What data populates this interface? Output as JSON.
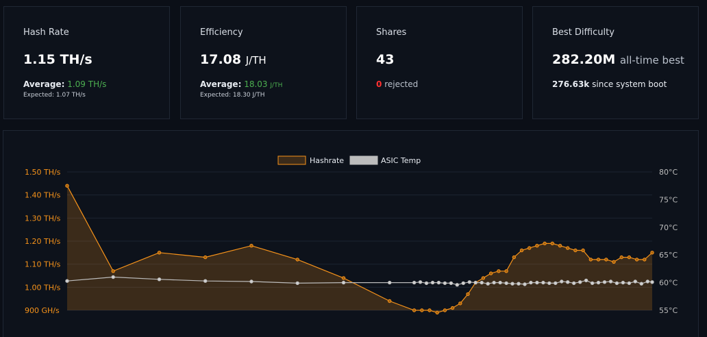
{
  "cards": {
    "hash_rate": {
      "title": "Hash Rate",
      "value": "1.15",
      "unit": "TH/s",
      "avg_label": "Average:",
      "avg_value": "1.09 TH/s",
      "expected": "Expected: 1.07 TH/s"
    },
    "efficiency": {
      "title": "Efficiency",
      "value": "17.08",
      "unit": "J/TH",
      "avg_label": "Average:",
      "avg_value": "18.03",
      "avg_unit": "J/TH",
      "expected": "Expected: 18.30 J/TH"
    },
    "shares": {
      "title": "Shares",
      "value": "43",
      "rejected_count": "0",
      "rejected_label": "rejected"
    },
    "best_difficulty": {
      "title": "Best Difficulty",
      "value": "282.20M",
      "suffix": "all-time best",
      "since_value": "276.63k",
      "since_label": "since system boot"
    }
  },
  "chart_data": {
    "type": "line",
    "title": "",
    "legend_position": "top-center",
    "grid": true,
    "series": [
      {
        "name": "Hashrate",
        "axis": "left",
        "unit": "TH/s",
        "color": "#f7931a",
        "fill": true,
        "x": [
          0,
          1.5,
          3,
          4.5,
          6,
          7.5,
          9,
          10.5,
          11.3,
          11.55,
          11.8,
          12.05,
          12.3,
          12.55,
          12.8,
          13.05,
          13.3,
          13.55,
          13.8,
          14.05,
          14.3,
          14.55,
          14.8,
          15.05,
          15.3,
          15.55,
          15.8,
          16.05,
          16.3,
          16.55,
          16.8,
          17.05,
          17.3,
          17.55,
          17.8,
          18.05,
          18.3,
          18.55,
          18.8,
          19.05
        ],
        "values": [
          1.44,
          1.07,
          1.15,
          1.13,
          1.18,
          1.12,
          1.04,
          0.94,
          0.9,
          0.9,
          0.9,
          0.89,
          0.9,
          0.91,
          0.93,
          0.97,
          1.02,
          1.04,
          1.06,
          1.07,
          1.07,
          1.13,
          1.16,
          1.17,
          1.18,
          1.19,
          1.19,
          1.18,
          1.17,
          1.16,
          1.16,
          1.12,
          1.12,
          1.12,
          1.11,
          1.13,
          1.13,
          1.12,
          1.12,
          1.15
        ]
      },
      {
        "name": "ASIC Temp",
        "axis": "right",
        "unit": "°C",
        "color": "#bcbcbc",
        "fill": false,
        "x": [
          0,
          1.5,
          3,
          4.5,
          6,
          7.5,
          9,
          10.5,
          11.3,
          11.5,
          11.7,
          11.9,
          12.1,
          12.3,
          12.5,
          12.7,
          12.9,
          13.1,
          13.3,
          13.5,
          13.7,
          13.9,
          14.1,
          14.3,
          14.5,
          14.7,
          14.9,
          15.1,
          15.3,
          15.5,
          15.7,
          15.9,
          16.1,
          16.3,
          16.5,
          16.7,
          16.9,
          17.1,
          17.3,
          17.5,
          17.7,
          17.9,
          18.1,
          18.3,
          18.5,
          18.7,
          18.9,
          19.05
        ],
        "values": [
          60.3,
          61.0,
          60.6,
          60.3,
          60.2,
          59.9,
          60.0,
          60.0,
          60.0,
          60.1,
          59.9,
          60.0,
          60.0,
          59.9,
          59.9,
          59.6,
          59.9,
          60.1,
          60.0,
          60.0,
          59.8,
          60.0,
          60.0,
          59.9,
          59.8,
          59.8,
          59.7,
          60.0,
          60.0,
          60.0,
          59.9,
          59.9,
          60.2,
          60.1,
          59.9,
          60.1,
          60.4,
          59.9,
          60.0,
          60.1,
          60.2,
          59.9,
          60.0,
          59.9,
          60.2,
          59.8,
          60.2,
          60.1
        ]
      }
    ],
    "y_left": {
      "ticks": [
        "1.50 TH/s",
        "1.40 TH/s",
        "1.30 TH/s",
        "1.20 TH/s",
        "1.10 TH/s",
        "1.00 TH/s",
        "900 GH/s"
      ],
      "range": [
        0.9,
        1.5
      ]
    },
    "y_right": {
      "ticks": [
        "80°C",
        "75°C",
        "70°C",
        "65°C",
        "60°C",
        "55°C"
      ],
      "range": [
        55,
        80
      ]
    },
    "x_range": [
      0,
      19.05
    ]
  }
}
